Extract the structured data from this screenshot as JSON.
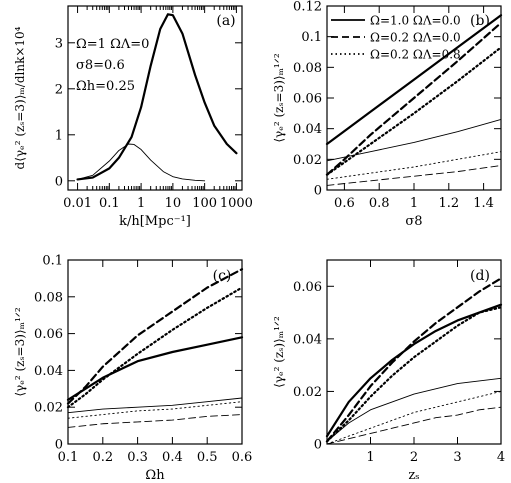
{
  "chart_data": [
    {
      "type": "line",
      "panel_label": "(a)",
      "xlabel": "k/h[Mpc⁻¹]",
      "ylabel": "d⟨γₑ² (zₛ=3)⟩ₘ/dlnk×10⁴",
      "x_scale": "log",
      "xlim": [
        0.005,
        1500
      ],
      "ylim": [
        -0.2,
        3.8
      ],
      "x_ticks": [
        0.01,
        0.1,
        1,
        10,
        100,
        1000
      ],
      "x_tick_labels": [
        "0.01",
        "0.1",
        "1",
        "10",
        "100",
        "1000"
      ],
      "y_ticks": [
        0,
        1,
        2,
        3
      ],
      "y_tick_labels": [
        "0",
        "1",
        "2",
        "3"
      ],
      "annotations": [
        "Ω=1  ΩΛ=0",
        "σ8=0.6",
        "Ωh=0.25"
      ],
      "series": [
        {
          "style": "thick-solid",
          "x": [
            0.01,
            0.03,
            0.1,
            0.2,
            0.5,
            1,
            2,
            4,
            7,
            10,
            20,
            50,
            100,
            200,
            500,
            1000
          ],
          "y": [
            0.03,
            0.07,
            0.27,
            0.5,
            0.95,
            1.6,
            2.5,
            3.3,
            3.62,
            3.6,
            3.2,
            2.3,
            1.7,
            1.2,
            0.8,
            0.6
          ]
        },
        {
          "style": "thin-solid",
          "x": [
            0.01,
            0.03,
            0.1,
            0.2,
            0.4,
            0.6,
            1,
            2,
            5,
            10,
            20,
            50,
            100
          ],
          "y": [
            0.03,
            0.12,
            0.43,
            0.66,
            0.8,
            0.79,
            0.68,
            0.45,
            0.2,
            0.09,
            0.04,
            0.01,
            0.0
          ]
        }
      ]
    },
    {
      "type": "line",
      "panel_label": "(b)",
      "xlabel": "σ8",
      "ylabel": "⟨γₑ² (zₛ=3)⟩ₘ¹ᐟ²",
      "xlim": [
        0.5,
        1.5
      ],
      "ylim": [
        0,
        0.12
      ],
      "x_ticks": [
        0.6,
        0.8,
        1.0,
        1.2,
        1.4
      ],
      "x_tick_labels": [
        "0.6",
        "0.8",
        "1",
        "1.2",
        "1.4"
      ],
      "y_ticks": [
        0,
        0.02,
        0.04,
        0.06,
        0.08,
        0.1,
        0.12
      ],
      "y_tick_labels": [
        "0",
        "0.02",
        "0.04",
        "0.06",
        "0.08",
        "0.1",
        "0.12"
      ],
      "legend": [
        {
          "style": "solid",
          "label": "Ω=1.0  ΩΛ=0.0"
        },
        {
          "style": "dashed",
          "label": "Ω=0.2  ΩΛ=0.0"
        },
        {
          "style": "dotted",
          "label": "Ω=0.2  ΩΛ=0.8"
        }
      ],
      "series": [
        {
          "style": "thick-solid",
          "x": [
            0.5,
            0.75,
            1.0,
            1.25,
            1.5
          ],
          "y": [
            0.03,
            0.051,
            0.072,
            0.093,
            0.114
          ]
        },
        {
          "style": "thick-dashed",
          "x": [
            0.5,
            0.6,
            0.75,
            1.0,
            1.25,
            1.5
          ],
          "y": [
            0.01,
            0.02,
            0.036,
            0.06,
            0.084,
            0.109
          ]
        },
        {
          "style": "thick-dotted",
          "x": [
            0.5,
            0.6,
            0.75,
            1.0,
            1.25,
            1.5
          ],
          "y": [
            0.01,
            0.018,
            0.03,
            0.05,
            0.071,
            0.093
          ]
        },
        {
          "style": "thin-solid",
          "x": [
            0.5,
            0.75,
            1.0,
            1.25,
            1.5
          ],
          "y": [
            0.019,
            0.025,
            0.031,
            0.038,
            0.046
          ]
        },
        {
          "style": "thin-dotted",
          "x": [
            0.5,
            0.75,
            1.0,
            1.25,
            1.5
          ],
          "y": [
            0.007,
            0.011,
            0.015,
            0.02,
            0.025
          ]
        },
        {
          "style": "thin-dashed",
          "x": [
            0.5,
            0.75,
            1.0,
            1.25,
            1.5
          ],
          "y": [
            0.003,
            0.006,
            0.009,
            0.012,
            0.016
          ]
        }
      ]
    },
    {
      "type": "line",
      "panel_label": "(c)",
      "xlabel": "Ωh",
      "ylabel": "⟨γₑ² (zₛ=3)⟩ₘ¹ᐟ²",
      "xlim": [
        0.1,
        0.6
      ],
      "ylim": [
        0,
        0.1
      ],
      "x_ticks": [
        0.1,
        0.2,
        0.3,
        0.4,
        0.5,
        0.6
      ],
      "x_tick_labels": [
        "0.1",
        "0.2",
        "0.3",
        "0.4",
        "0.5",
        "0.6"
      ],
      "y_ticks": [
        0,
        0.02,
        0.04,
        0.06,
        0.08,
        0.1
      ],
      "y_tick_labels": [
        "0",
        "0.02",
        "0.04",
        "0.06",
        "0.08",
        "0.1"
      ],
      "series": [
        {
          "style": "thick-solid",
          "x": [
            0.1,
            0.15,
            0.2,
            0.3,
            0.4,
            0.5,
            0.6
          ],
          "y": [
            0.024,
            0.03,
            0.036,
            0.045,
            0.05,
            0.054,
            0.058
          ]
        },
        {
          "style": "thick-dashed",
          "x": [
            0.1,
            0.15,
            0.2,
            0.3,
            0.4,
            0.5,
            0.6
          ],
          "y": [
            0.022,
            0.031,
            0.042,
            0.059,
            0.072,
            0.085,
            0.095
          ]
        },
        {
          "style": "thick-dotted",
          "x": [
            0.1,
            0.15,
            0.2,
            0.3,
            0.4,
            0.5,
            0.6
          ],
          "y": [
            0.02,
            0.027,
            0.035,
            0.049,
            0.062,
            0.074,
            0.085
          ]
        },
        {
          "style": "thin-solid",
          "x": [
            0.1,
            0.2,
            0.3,
            0.4,
            0.5,
            0.6
          ],
          "y": [
            0.017,
            0.019,
            0.02,
            0.021,
            0.023,
            0.025
          ]
        },
        {
          "style": "thin-dotted",
          "x": [
            0.1,
            0.2,
            0.3,
            0.4,
            0.5,
            0.6
          ],
          "y": [
            0.014,
            0.016,
            0.018,
            0.019,
            0.021,
            0.023
          ]
        },
        {
          "style": "thin-dashed",
          "x": [
            0.1,
            0.2,
            0.3,
            0.4,
            0.5,
            0.6
          ],
          "y": [
            0.009,
            0.011,
            0.012,
            0.013,
            0.015,
            0.016
          ]
        }
      ]
    },
    {
      "type": "line",
      "panel_label": "(d)",
      "xlabel": "zₛ",
      "ylabel": "⟨γₑ² (zₛ)⟩ₘ¹ᐟ²",
      "xlim": [
        0,
        4
      ],
      "ylim": [
        0,
        0.07
      ],
      "x_ticks": [
        1,
        2,
        3,
        4
      ],
      "x_tick_labels": [
        "1",
        "2",
        "3",
        "4"
      ],
      "y_ticks": [
        0,
        0.02,
        0.04,
        0.06
      ],
      "y_tick_labels": [
        "0",
        "0.02",
        "0.04",
        "0.06"
      ],
      "series": [
        {
          "style": "thick-solid",
          "x": [
            0,
            0.5,
            1,
            1.5,
            2,
            2.5,
            3,
            3.5,
            4
          ],
          "y": [
            0.003,
            0.016,
            0.025,
            0.032,
            0.038,
            0.043,
            0.047,
            0.05,
            0.053
          ]
        },
        {
          "style": "thick-dashed",
          "x": [
            0,
            0.5,
            1,
            1.5,
            2,
            2.5,
            3,
            3.5,
            4
          ],
          "y": [
            0.001,
            0.011,
            0.022,
            0.031,
            0.039,
            0.046,
            0.052,
            0.058,
            0.063
          ]
        },
        {
          "style": "thick-dotted",
          "x": [
            0,
            0.5,
            1,
            1.5,
            2,
            2.5,
            3,
            3.5,
            4
          ],
          "y": [
            0.001,
            0.009,
            0.018,
            0.026,
            0.033,
            0.039,
            0.045,
            0.05,
            0.052
          ]
        },
        {
          "style": "thin-solid",
          "x": [
            0,
            0.5,
            1,
            1.5,
            2,
            2.5,
            3,
            3.5,
            4
          ],
          "y": [
            0.001,
            0.008,
            0.013,
            0.016,
            0.019,
            0.021,
            0.023,
            0.024,
            0.025
          ]
        },
        {
          "style": "thin-dotted",
          "x": [
            0,
            0.5,
            1,
            1.5,
            2,
            2.5,
            3,
            3.5,
            4
          ],
          "y": [
            0.0,
            0.003,
            0.006,
            0.009,
            0.012,
            0.014,
            0.016,
            0.018,
            0.02
          ]
        },
        {
          "style": "thin-dashed",
          "x": [
            0,
            0.5,
            1,
            1.5,
            2,
            2.5,
            3,
            3.5,
            4
          ],
          "y": [
            0.0,
            0.002,
            0.004,
            0.006,
            0.008,
            0.01,
            0.011,
            0.013,
            0.014
          ]
        }
      ]
    }
  ]
}
